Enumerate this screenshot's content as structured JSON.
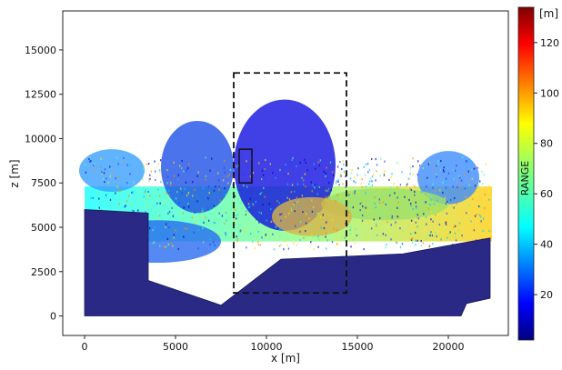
{
  "chart_data": {
    "type": "scatter",
    "title": "",
    "xlabel": "x [m]",
    "ylabel": "z [m]",
    "xlim": [
      -1200,
      23300
    ],
    "ylim": [
      -1100,
      17200
    ],
    "xticks": [
      0,
      5000,
      10000,
      15000,
      20000
    ],
    "xtick_labels": [
      "0",
      "5000",
      "10000",
      "15000",
      "20000"
    ],
    "yticks": [
      0,
      2500,
      5000,
      7500,
      10000,
      12500,
      15000
    ],
    "ytick_labels": [
      "0",
      "2500",
      "5000",
      "7500",
      "10000",
      "12500",
      "15000"
    ],
    "grid": false,
    "colorbar": {
      "label": "RANGE",
      "unit": "[m]",
      "colormap": "jet",
      "range": [
        2,
        134
      ],
      "ticks": [
        20,
        40,
        60,
        80,
        100,
        120
      ],
      "tick_labels": [
        "20",
        "40",
        "60",
        "80",
        "100",
        "120"
      ]
    },
    "ground_surface": {
      "name": "terrain",
      "color": "#2a2a86",
      "x": [
        0,
        3500,
        3500,
        7500,
        10800,
        17500,
        22300,
        22300,
        21000,
        20700,
        0
      ],
      "y": [
        6000,
        5800,
        2000,
        600,
        3200,
        3500,
        4400,
        1000,
        700,
        0,
        0
      ]
    },
    "annotations": [
      {
        "type": "dashed-rectangle",
        "x": [
          8200,
          14400
        ],
        "y": [
          1300,
          13700
        ]
      },
      {
        "type": "solid-rectangle",
        "x": [
          8500,
          9200
        ],
        "y": [
          7500,
          9400
        ]
      }
    ]
  }
}
